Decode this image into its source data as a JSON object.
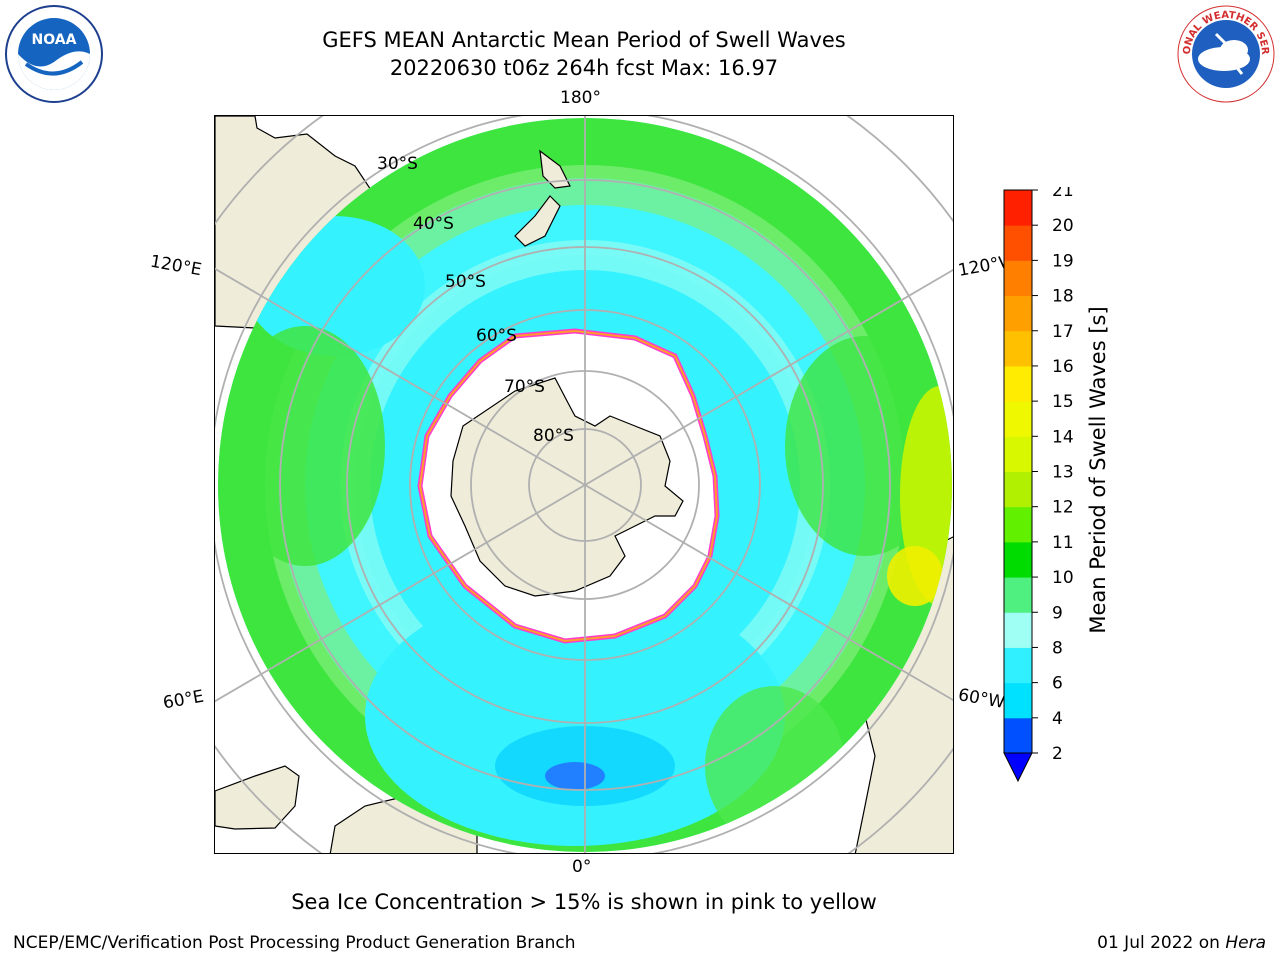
{
  "title_line1": "GEFS MEAN Antarctic Mean Period of Swell Waves",
  "title_line2": "20220630 t06z 264h fcst   Max: 16.97",
  "logos": {
    "left": "noaa-logo",
    "right": "nws-logo",
    "left_text": "NOAA",
    "right_text": "NATIONAL WEATHER SERVICE"
  },
  "map": {
    "projection": "south-polar-stereographic",
    "lon_labels": {
      "top": "180°",
      "bottom": "0°",
      "left_upper": "120°E",
      "left_lower": "60°E",
      "right_upper": "120°W",
      "right_lower": "60°W"
    },
    "lat_labels": [
      "30°S",
      "40°S",
      "50°S",
      "60°S",
      "70°S",
      "80°S"
    ],
    "colors": {
      "land": "#efecd9",
      "ice": "#ffffff",
      "ice_edge": "#ff3ccf",
      "gridline": "#b0b0b0"
    }
  },
  "colorbar": {
    "label": "Mean Period of Swell Waves [s]",
    "ticks": [
      "2",
      "4",
      "6",
      "8",
      "9",
      "10",
      "11",
      "12",
      "13",
      "14",
      "15",
      "16",
      "17",
      "18",
      "19",
      "20",
      "21"
    ],
    "colors": [
      "#0050ff",
      "#00e0ff",
      "#30f0ff",
      "#a0fff4",
      "#50f080",
      "#00dc00",
      "#60f000",
      "#b0f000",
      "#d8f800",
      "#f0f800",
      "#ffec00",
      "#ffc000",
      "#ffa000",
      "#ff8000",
      "#ff5000",
      "#ff2000",
      "#ff0000"
    ],
    "extend_color": "#0000ff"
  },
  "footer_note": "Sea Ice Concentration > 15% is shown in pink to yellow",
  "credit": "NCEP/EMC/Verification Post Processing Product Generation Branch",
  "date_prefix": "01 Jul 2022 on",
  "date_host": "Hera"
}
